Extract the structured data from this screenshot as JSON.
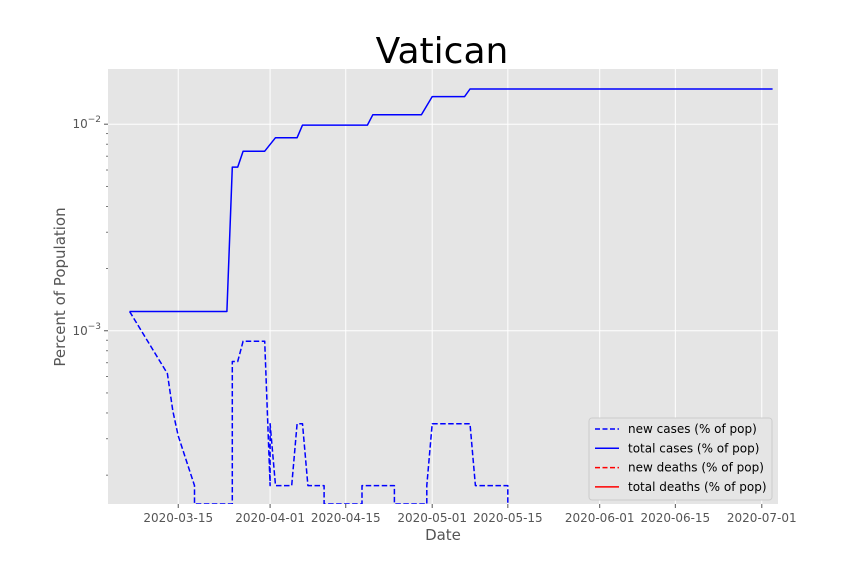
{
  "chart_data": {
    "type": "line",
    "title": "Vatican",
    "xlabel": "Date",
    "ylabel": "Percent of Population",
    "yscale": "log",
    "ylim": [
      0.000145,
      0.0185
    ],
    "xlim": [
      "2020-03-02",
      "2020-07-04"
    ],
    "grid": true,
    "legend_position": "lower-right",
    "x_ticks": [
      "2020-03-15",
      "2020-04-01",
      "2020-04-15",
      "2020-05-01",
      "2020-05-15",
      "2020-06-01",
      "2020-06-15",
      "2020-07-01"
    ],
    "y_ticks": [
      {
        "value": 0.001,
        "base": "10",
        "exp": "−3"
      },
      {
        "value": 0.01,
        "base": "10",
        "exp": "−2"
      }
    ],
    "series": [
      {
        "name": "new cases (% of pop)",
        "color": "#0000ff",
        "style": "dashed",
        "points": [
          [
            "2020-03-06",
            0.00124
          ],
          [
            "2020-03-13",
            0.00062
          ],
          [
            "2020-03-14",
            0.00041
          ],
          [
            "2020-03-15",
            0.00031
          ],
          [
            "2020-03-18",
            0.000178
          ],
          [
            "2020-03-18",
            0.000145
          ],
          [
            "2020-03-25",
            0.000145
          ],
          [
            "2020-03-25",
            0.00071
          ],
          [
            "2020-03-26",
            0.00071
          ],
          [
            "2020-03-27",
            0.00089
          ],
          [
            "2020-03-30",
            0.00089
          ],
          [
            "2020-03-31",
            0.00089
          ],
          [
            "2020-04-01",
            0.000178
          ],
          [
            "2020-04-01",
            0.000355
          ],
          [
            "2020-04-02",
            0.000178
          ],
          [
            "2020-04-05",
            0.000178
          ],
          [
            "2020-04-06",
            0.000355
          ],
          [
            "2020-04-07",
            0.000355
          ],
          [
            "2020-04-08",
            0.000178
          ],
          [
            "2020-04-11",
            0.000178
          ],
          [
            "2020-04-11",
            0.000145
          ],
          [
            "2020-04-18",
            0.000145
          ],
          [
            "2020-04-18",
            0.000178
          ],
          [
            "2020-04-24",
            0.000178
          ],
          [
            "2020-04-24",
            0.000145
          ],
          [
            "2020-04-30",
            0.000145
          ],
          [
            "2020-04-30",
            0.000178
          ],
          [
            "2020-05-01",
            0.000355
          ],
          [
            "2020-05-08",
            0.000355
          ],
          [
            "2020-05-09",
            0.000178
          ],
          [
            "2020-05-15",
            0.000178
          ],
          [
            "2020-05-15",
            0.000145
          ]
        ]
      },
      {
        "name": "total cases (% of pop)",
        "color": "#0000ff",
        "style": "solid",
        "points": [
          [
            "2020-03-06",
            0.00124
          ],
          [
            "2020-03-24",
            0.00124
          ],
          [
            "2020-03-25",
            0.0062
          ],
          [
            "2020-03-26",
            0.0062
          ],
          [
            "2020-03-27",
            0.0074
          ],
          [
            "2020-03-31",
            0.0074
          ],
          [
            "2020-04-02",
            0.0086
          ],
          [
            "2020-04-06",
            0.0086
          ],
          [
            "2020-04-07",
            0.0099
          ],
          [
            "2020-04-19",
            0.0099
          ],
          [
            "2020-04-20",
            0.0111
          ],
          [
            "2020-04-29",
            0.0111
          ],
          [
            "2020-05-01",
            0.0136
          ],
          [
            "2020-05-07",
            0.0136
          ],
          [
            "2020-05-08",
            0.0148
          ],
          [
            "2020-07-03",
            0.0148
          ]
        ]
      },
      {
        "name": "new deaths (% of pop)",
        "color": "#ff0000",
        "style": "dashed",
        "points": []
      },
      {
        "name": "total deaths (% of pop)",
        "color": "#ff0000",
        "style": "solid",
        "points": []
      }
    ]
  }
}
